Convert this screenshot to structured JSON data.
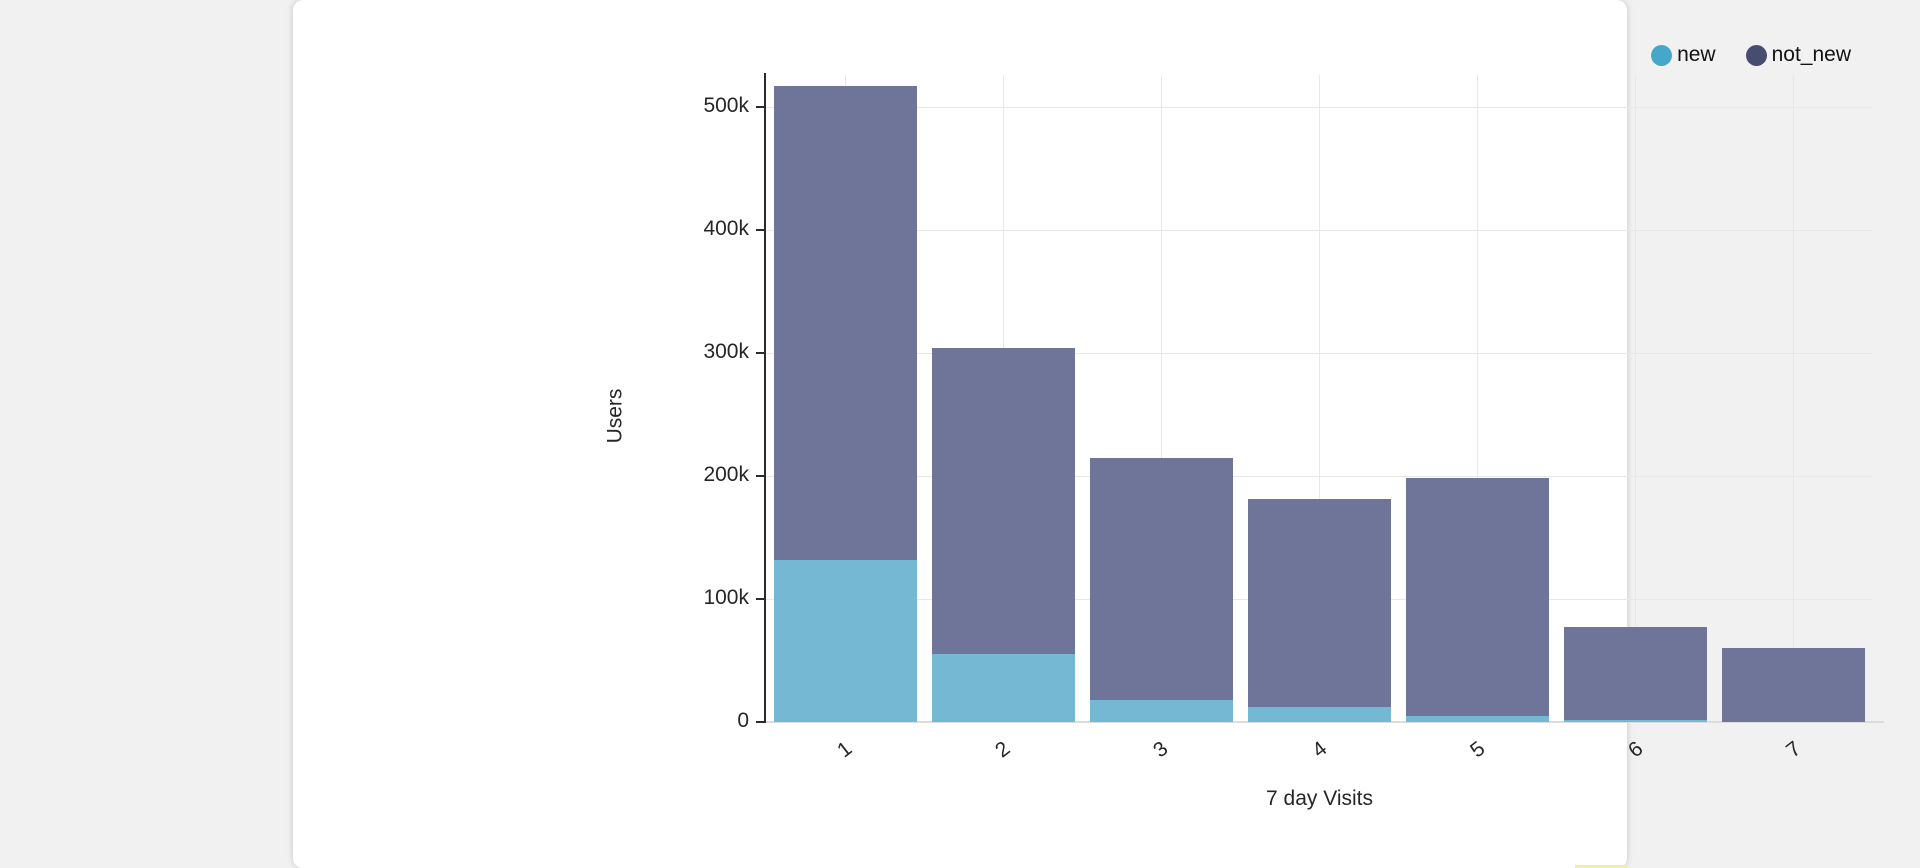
{
  "page": {
    "background_color": "#f1f1f1",
    "card_background_color": "#ffffff"
  },
  "legend": {
    "items": [
      {
        "label": "new",
        "swatch_color": "#45a7c9"
      },
      {
        "label": "not_new",
        "swatch_color": "#474d70"
      }
    ]
  },
  "chart_data": {
    "type": "bar",
    "stacked": true,
    "title": "",
    "xlabel": "7 day Visits",
    "ylabel": "Users",
    "categories": [
      "1",
      "2",
      "3",
      "4",
      "5",
      "6",
      "7"
    ],
    "series": [
      {
        "name": "new",
        "bar_color": "#74b8d4",
        "legend_color": "#45a7c9",
        "values": [
          132000,
          55000,
          18000,
          12000,
          5000,
          2000,
          0
        ]
      },
      {
        "name": "not_new",
        "bar_color": "#6f7598",
        "legend_color": "#474d70",
        "values": [
          385000,
          249000,
          197000,
          169000,
          193000,
          75000,
          60000
        ]
      }
    ],
    "totals": [
      517000,
      304000,
      215000,
      181000,
      198000,
      77000,
      60000
    ],
    "ylim": [
      0,
      520000
    ],
    "yticks": [
      {
        "value": 0,
        "label": "0"
      },
      {
        "value": 100000,
        "label": "100k"
      },
      {
        "value": 200000,
        "label": "200k"
      },
      {
        "value": 300000,
        "label": "300k"
      },
      {
        "value": 400000,
        "label": "400k"
      },
      {
        "value": 500000,
        "label": "500k"
      }
    ],
    "grid": true,
    "legend_position": "top-right"
  },
  "misc": {
    "bottom_strip_color": "#eef0a4"
  }
}
